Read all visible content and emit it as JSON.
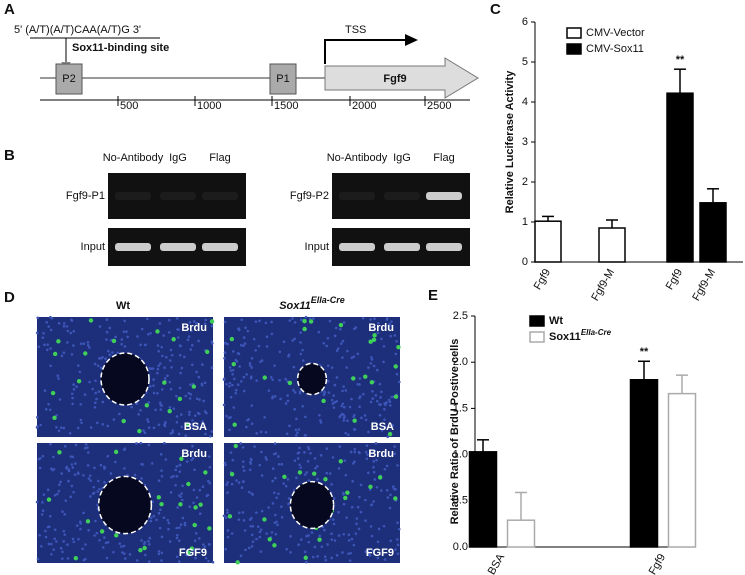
{
  "chart_data": [
    {
      "type": "bar",
      "panel": "C",
      "ylabel": "Relative Luciferase Activity",
      "categories": [
        "Fgf9",
        "Fgf9-M",
        "Fgf9",
        "Fgf9-M"
      ],
      "series": [
        {
          "name": "CMV-Vector",
          "color": "#ffffff",
          "edge": "#000000",
          "values": [
            1.02,
            0.85,
            null,
            null
          ],
          "errors": [
            0.12,
            0.2,
            null,
            null
          ]
        },
        {
          "name": "CMV-Sox11",
          "color": "#000000",
          "edge": "#000000",
          "values": [
            null,
            null,
            4.22,
            1.48
          ],
          "errors": [
            null,
            null,
            0.6,
            0.35
          ]
        }
      ],
      "ylim": [
        0,
        6
      ],
      "yticks": [
        0,
        1,
        2,
        3,
        4,
        5,
        6
      ],
      "annotations": [
        "**"
      ]
    },
    {
      "type": "bar",
      "panel": "E",
      "ylabel": "Relative Ratio of BrdU Postive cells",
      "categories": [
        "BSA",
        "Fgf9"
      ],
      "series": [
        {
          "name": "Wt",
          "color": "#000000",
          "edge": "#000000",
          "values": [
            1.03,
            1.81
          ],
          "errors": [
            0.13,
            0.2
          ]
        },
        {
          "name": "Sox11",
          "name_sup": "Ella-Cre",
          "color": "#ffffff",
          "edge": "#aaaaaa",
          "values": [
            0.29,
            1.66
          ],
          "errors": [
            0.3,
            0.2
          ]
        }
      ],
      "ylim": [
        0,
        2.5
      ],
      "yticks": [
        {
          "value": 0,
          "label": "0.0"
        },
        0.5,
        {
          "value": 1,
          "label": "1.0"
        },
        1.5,
        {
          "value": 2,
          "label": "2.0"
        },
        2.5
      ],
      "annotations": [
        "**"
      ]
    }
  ],
  "diagram_A": {
    "panel": "A",
    "motif": "5' (A/T)(A/T)CAA(A/T)G 3'",
    "site": "Sox11-binding site",
    "p2": "P2",
    "p1": "P1",
    "tss": "TSS",
    "gene": "Fgf9",
    "scale": [
      "500",
      "1000",
      "1500",
      "2000",
      "2500"
    ]
  },
  "gel_B": {
    "panel": "B",
    "columns": [
      "No-Antibody",
      "IgG",
      "Flag"
    ],
    "left_rows": [
      "Fgf9-P1",
      "Input"
    ],
    "right_rows": [
      "Fgf9-P2",
      "Input"
    ]
  },
  "images_D": {
    "panel": "D",
    "wt": "Wt",
    "mut": "Sox11",
    "mut_sup": "Ella-Cre",
    "marker": "Brdu",
    "top": "BSA",
    "bottom": "FGF9"
  }
}
